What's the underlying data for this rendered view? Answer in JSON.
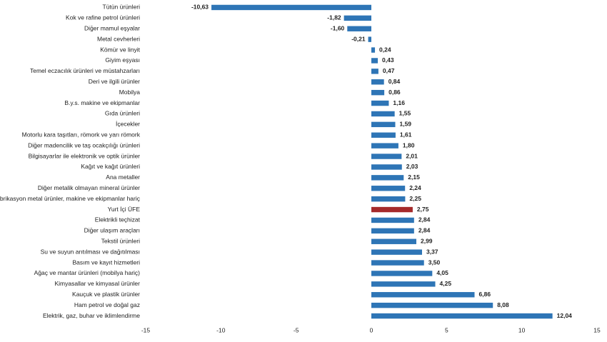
{
  "chart_data": {
    "type": "barh",
    "categories": [
      "Tütün ürünleri",
      "Kok ve rafine petrol ürünleri",
      "Diğer mamul eşyalar",
      "Metal cevherleri",
      "Kömür ve linyit",
      "Giyim eşyası",
      "Temel eczacılık ürünleri ve müstahzarları",
      "Deri ve ilgili ürünler",
      "Mobilya",
      "B.y.s. makine ve ekipmanlar",
      "Gıda ürünleri",
      "İçecekler",
      "Motorlu kara taşıtları, römork ve yarı römork",
      "Diğer madencilik ve taş ocakçılığı ürünleri",
      "Bilgisayarlar ile elektronik ve optik ürünler",
      "Kağıt ve kağıt ürünleri",
      "Ana metaller",
      "Diğer metalik olmayan mineral ürünler",
      "Fabrikasyon metal ürünler, makine ve ekipmanlar hariç",
      "Yurt İçi ÜFE",
      "Elektrikli teçhizat",
      "Diğer ulaşım araçları",
      "Tekstil ürünleri",
      "Su ve suyun arıtılması ve dağıtılması",
      "Basım ve kayıt hizmetleri",
      "Ağaç ve mantar ürünleri (mobilya hariç)",
      "Kimyasallar ve kimyasal ürünler",
      "Kauçuk ve plastik ürünler",
      "Ham petrol ve doğal gaz",
      "Elektrik, gaz, buhar ve iklimlendirme"
    ],
    "values": [
      -10.63,
      -1.82,
      -1.6,
      -0.21,
      0.24,
      0.43,
      0.47,
      0.84,
      0.86,
      1.16,
      1.55,
      1.59,
      1.61,
      1.8,
      2.01,
      2.03,
      2.15,
      2.24,
      2.25,
      2.75,
      2.84,
      2.84,
      2.99,
      3.37,
      3.5,
      4.05,
      4.25,
      6.86,
      8.08,
      12.04
    ],
    "value_labels": [
      "-10,63",
      "-1,82",
      "-1,60",
      "-0,21",
      "0,24",
      "0,43",
      "0,47",
      "0,84",
      "0,86",
      "1,16",
      "1,55",
      "1,59",
      "1,61",
      "1,80",
      "2,01",
      "2,03",
      "2,15",
      "2,24",
      "2,25",
      "2,75",
      "2,84",
      "2,84",
      "2,99",
      "3,37",
      "3,50",
      "4,05",
      "4,25",
      "6,86",
      "8,08",
      "12,04"
    ],
    "colors": [
      "#2e75b6",
      "#2e75b6",
      "#2e75b6",
      "#2e75b6",
      "#2e75b6",
      "#2e75b6",
      "#2e75b6",
      "#2e75b6",
      "#2e75b6",
      "#2e75b6",
      "#2e75b6",
      "#2e75b6",
      "#2e75b6",
      "#2e75b6",
      "#2e75b6",
      "#2e75b6",
      "#2e75b6",
      "#2e75b6",
      "#2e75b6",
      "#a52a2a",
      "#2e75b6",
      "#2e75b6",
      "#2e75b6",
      "#2e75b6",
      "#2e75b6",
      "#2e75b6",
      "#2e75b6",
      "#2e75b6",
      "#2e75b6",
      "#2e75b6"
    ],
    "xlim": [
      -15,
      15
    ],
    "xticks": [
      -15,
      -10,
      -5,
      0,
      5,
      10,
      15
    ],
    "grid": false
  }
}
